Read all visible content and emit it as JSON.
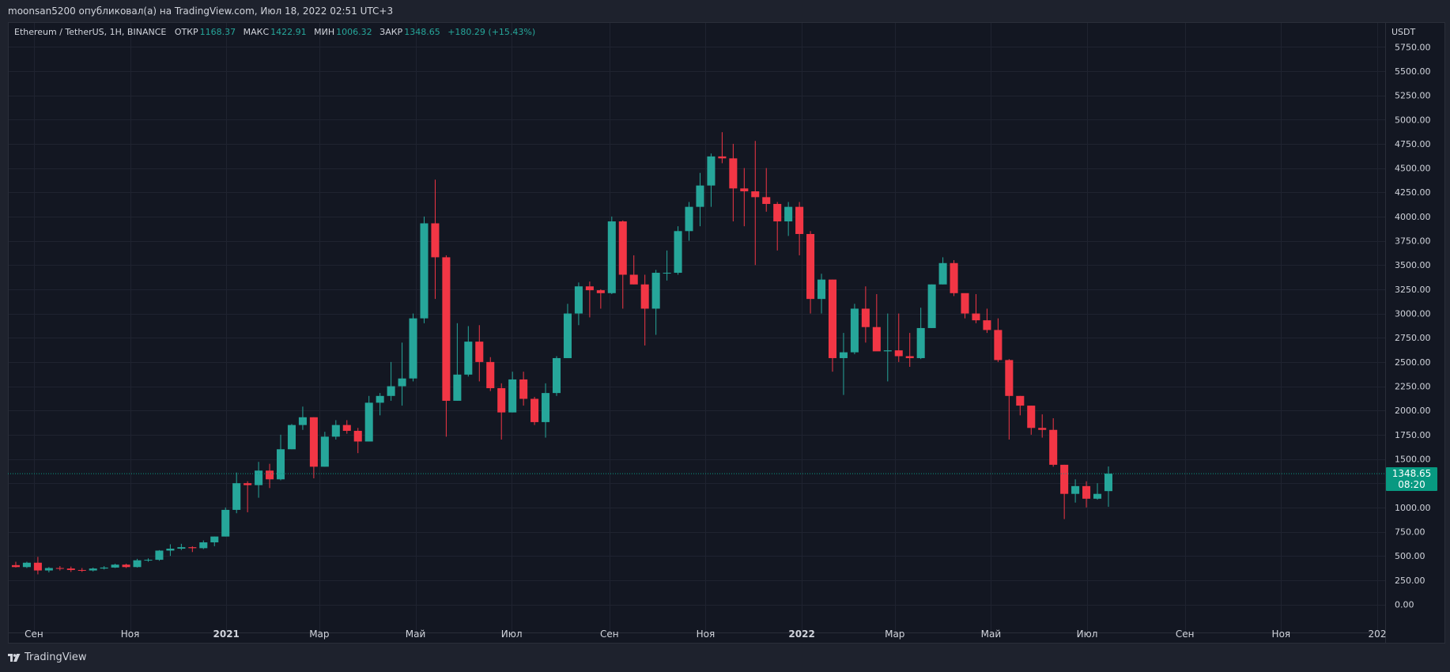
{
  "header": {
    "attribution": "moonsan5200 опубликовал(а) на TradingView.com, Июл 18, 2022 02:51 UTC+3"
  },
  "legend": {
    "symbol": "Ethereum / TetherUS, 1H, BINANCE",
    "open_label": "ОТКР",
    "open": "1168.37",
    "high_label": "МАКС",
    "high": "1422.91",
    "low_label": "МИН",
    "low": "1006.32",
    "close_label": "ЗАКР",
    "close": "1348.65",
    "change": "+180.29 (+15.43%)"
  },
  "last_price": {
    "value": "1348.65",
    "countdown": "08:20"
  },
  "footer": {
    "brand": "TradingView"
  },
  "colors": {
    "up": "#26a69a",
    "down": "#f23645",
    "background": "#131722",
    "grid": "#1f2330",
    "text": "#d1d4dc",
    "price_line": "#089981"
  },
  "chart_data": {
    "type": "candlestick",
    "currency_label": "USDT",
    "ylim": [
      -100,
      5950
    ],
    "y_ticks": [
      0,
      250,
      500,
      750,
      1000,
      1250,
      1500,
      1750,
      2000,
      2250,
      2500,
      2750,
      3000,
      3250,
      3500,
      3750,
      4000,
      4250,
      4500,
      4750,
      5000,
      5250,
      5500,
      5750
    ],
    "y_tick_labels": [
      "0.00",
      "250.00",
      "500.00",
      "750.00",
      "1000.00",
      "1250.00",
      "1500.00",
      "1750.00",
      "2000.00",
      "2250.00",
      "2500.00",
      "2750.00",
      "3000.00",
      "3250.00",
      "3500.00",
      "3750.00",
      "4000.00",
      "4250.00",
      "4500.00",
      "4750.00",
      "5000.00",
      "5250.00",
      "5500.00",
      "5750.00"
    ],
    "x_start_date": "2020-08-17",
    "x_end_date": "2023-01-01",
    "x_ticks": [
      {
        "date": "2020-09-01",
        "label": "Сен"
      },
      {
        "date": "2020-11-01",
        "label": "Ноя"
      },
      {
        "date": "2021-01-01",
        "label": "2021",
        "bold": true
      },
      {
        "date": "2021-03-01",
        "label": "Мар"
      },
      {
        "date": "2021-05-01",
        "label": "Май"
      },
      {
        "date": "2021-07-01",
        "label": "Июл"
      },
      {
        "date": "2021-09-01",
        "label": "Сен"
      },
      {
        "date": "2021-11-01",
        "label": "Ноя"
      },
      {
        "date": "2022-01-01",
        "label": "2022",
        "bold": true
      },
      {
        "date": "2022-03-01",
        "label": "Мар"
      },
      {
        "date": "2022-05-01",
        "label": "Май"
      },
      {
        "date": "2022-07-01",
        "label": "Июл"
      },
      {
        "date": "2022-09-01",
        "label": "Сен"
      },
      {
        "date": "2022-11-01",
        "label": "Ноя"
      },
      {
        "date": "2023-01-01",
        "label": "202"
      }
    ],
    "candle_interval_days": 7,
    "last_price": 1348.65,
    "candles": [
      {
        "d": "2020-08-17",
        "o": 405,
        "h": 440,
        "l": 380,
        "c": 385
      },
      {
        "d": "2020-08-24",
        "o": 385,
        "h": 440,
        "l": 375,
        "c": 430
      },
      {
        "d": "2020-08-31",
        "o": 430,
        "h": 490,
        "l": 310,
        "c": 350
      },
      {
        "d": "2020-09-07",
        "o": 350,
        "h": 385,
        "l": 330,
        "c": 375
      },
      {
        "d": "2020-09-14",
        "o": 375,
        "h": 395,
        "l": 350,
        "c": 370
      },
      {
        "d": "2020-09-21",
        "o": 370,
        "h": 390,
        "l": 335,
        "c": 355
      },
      {
        "d": "2020-09-28",
        "o": 355,
        "h": 375,
        "l": 335,
        "c": 350
      },
      {
        "d": "2020-10-05",
        "o": 350,
        "h": 380,
        "l": 340,
        "c": 370
      },
      {
        "d": "2020-10-12",
        "o": 370,
        "h": 395,
        "l": 360,
        "c": 380
      },
      {
        "d": "2020-10-19",
        "o": 380,
        "h": 420,
        "l": 375,
        "c": 410
      },
      {
        "d": "2020-10-26",
        "o": 410,
        "h": 420,
        "l": 375,
        "c": 385
      },
      {
        "d": "2020-11-02",
        "o": 385,
        "h": 470,
        "l": 380,
        "c": 455
      },
      {
        "d": "2020-11-09",
        "o": 455,
        "h": 475,
        "l": 440,
        "c": 460
      },
      {
        "d": "2020-11-16",
        "o": 460,
        "h": 560,
        "l": 450,
        "c": 555
      },
      {
        "d": "2020-11-23",
        "o": 555,
        "h": 620,
        "l": 500,
        "c": 575
      },
      {
        "d": "2020-11-30",
        "o": 575,
        "h": 625,
        "l": 560,
        "c": 590
      },
      {
        "d": "2020-12-07",
        "o": 590,
        "h": 600,
        "l": 540,
        "c": 580
      },
      {
        "d": "2020-12-14",
        "o": 580,
        "h": 660,
        "l": 570,
        "c": 640
      },
      {
        "d": "2020-12-21",
        "o": 640,
        "h": 700,
        "l": 600,
        "c": 700
      },
      {
        "d": "2020-12-28",
        "o": 700,
        "h": 1000,
        "l": 700,
        "c": 975
      },
      {
        "d": "2021-01-04",
        "o": 975,
        "h": 1360,
        "l": 940,
        "c": 1250
      },
      {
        "d": "2021-01-11",
        "o": 1250,
        "h": 1270,
        "l": 950,
        "c": 1230
      },
      {
        "d": "2021-01-18",
        "o": 1230,
        "h": 1470,
        "l": 1100,
        "c": 1380
      },
      {
        "d": "2021-01-25",
        "o": 1380,
        "h": 1450,
        "l": 1200,
        "c": 1290
      },
      {
        "d": "2021-02-01",
        "o": 1290,
        "h": 1750,
        "l": 1280,
        "c": 1600
      },
      {
        "d": "2021-02-08",
        "o": 1600,
        "h": 1860,
        "l": 1600,
        "c": 1850
      },
      {
        "d": "2021-02-15",
        "o": 1850,
        "h": 2040,
        "l": 1800,
        "c": 1930
      },
      {
        "d": "2021-02-22",
        "o": 1930,
        "h": 1930,
        "l": 1300,
        "c": 1420
      },
      {
        "d": "2021-03-01",
        "o": 1420,
        "h": 1780,
        "l": 1420,
        "c": 1730
      },
      {
        "d": "2021-03-08",
        "o": 1730,
        "h": 1900,
        "l": 1700,
        "c": 1850
      },
      {
        "d": "2021-03-15",
        "o": 1850,
        "h": 1900,
        "l": 1760,
        "c": 1790
      },
      {
        "d": "2021-03-22",
        "o": 1790,
        "h": 1820,
        "l": 1560,
        "c": 1680
      },
      {
        "d": "2021-03-29",
        "o": 1680,
        "h": 2150,
        "l": 1680,
        "c": 2080
      },
      {
        "d": "2021-04-05",
        "o": 2080,
        "h": 2180,
        "l": 1950,
        "c": 2150
      },
      {
        "d": "2021-04-12",
        "o": 2150,
        "h": 2500,
        "l": 2100,
        "c": 2250
      },
      {
        "d": "2021-04-19",
        "o": 2250,
        "h": 2700,
        "l": 2050,
        "c": 2330
      },
      {
        "d": "2021-04-26",
        "o": 2330,
        "h": 3000,
        "l": 2300,
        "c": 2950
      },
      {
        "d": "2021-05-03",
        "o": 2950,
        "h": 4000,
        "l": 2900,
        "c": 3930
      },
      {
        "d": "2021-05-10",
        "o": 3930,
        "h": 4380,
        "l": 3150,
        "c": 3580
      },
      {
        "d": "2021-05-17",
        "o": 3580,
        "h": 3600,
        "l": 1730,
        "c": 2100
      },
      {
        "d": "2021-05-24",
        "o": 2100,
        "h": 2900,
        "l": 2100,
        "c": 2370
      },
      {
        "d": "2021-05-31",
        "o": 2370,
        "h": 2870,
        "l": 2350,
        "c": 2710
      },
      {
        "d": "2021-06-07",
        "o": 2710,
        "h": 2880,
        "l": 2300,
        "c": 2500
      },
      {
        "d": "2021-06-14",
        "o": 2500,
        "h": 2550,
        "l": 2200,
        "c": 2230
      },
      {
        "d": "2021-06-21",
        "o": 2230,
        "h": 2280,
        "l": 1700,
        "c": 1980
      },
      {
        "d": "2021-06-28",
        "o": 1980,
        "h": 2400,
        "l": 1980,
        "c": 2320
      },
      {
        "d": "2021-07-05",
        "o": 2320,
        "h": 2400,
        "l": 2050,
        "c": 2120
      },
      {
        "d": "2021-07-12",
        "o": 2120,
        "h": 2140,
        "l": 1850,
        "c": 1880
      },
      {
        "d": "2021-07-19",
        "o": 1880,
        "h": 2280,
        "l": 1720,
        "c": 2180
      },
      {
        "d": "2021-07-26",
        "o": 2180,
        "h": 2560,
        "l": 2150,
        "c": 2540
      },
      {
        "d": "2021-08-02",
        "o": 2540,
        "h": 3100,
        "l": 2550,
        "c": 3000
      },
      {
        "d": "2021-08-09",
        "o": 3000,
        "h": 3320,
        "l": 2880,
        "c": 3280
      },
      {
        "d": "2021-08-16",
        "o": 3280,
        "h": 3330,
        "l": 2960,
        "c": 3240
      },
      {
        "d": "2021-08-23",
        "o": 3240,
        "h": 3250,
        "l": 3050,
        "c": 3210
      },
      {
        "d": "2021-08-30",
        "o": 3210,
        "h": 4000,
        "l": 3200,
        "c": 3950
      },
      {
        "d": "2021-09-06",
        "o": 3950,
        "h": 3960,
        "l": 3050,
        "c": 3400
      },
      {
        "d": "2021-09-13",
        "o": 3400,
        "h": 3600,
        "l": 3300,
        "c": 3300
      },
      {
        "d": "2021-09-20",
        "o": 3300,
        "h": 3400,
        "l": 2670,
        "c": 3050
      },
      {
        "d": "2021-09-27",
        "o": 3050,
        "h": 3450,
        "l": 2780,
        "c": 3420
      },
      {
        "d": "2021-10-04",
        "o": 3420,
        "h": 3650,
        "l": 3340,
        "c": 3420
      },
      {
        "d": "2021-10-11",
        "o": 3420,
        "h": 3900,
        "l": 3400,
        "c": 3850
      },
      {
        "d": "2021-10-18",
        "o": 3850,
        "h": 4150,
        "l": 3750,
        "c": 4100
      },
      {
        "d": "2021-10-25",
        "o": 4100,
        "h": 4450,
        "l": 3900,
        "c": 4320
      },
      {
        "d": "2021-11-01",
        "o": 4320,
        "h": 4650,
        "l": 4100,
        "c": 4620
      },
      {
        "d": "2021-11-08",
        "o": 4620,
        "h": 4870,
        "l": 4550,
        "c": 4600
      },
      {
        "d": "2021-11-15",
        "o": 4600,
        "h": 4750,
        "l": 3950,
        "c": 4290
      },
      {
        "d": "2021-11-22",
        "o": 4290,
        "h": 4500,
        "l": 3900,
        "c": 4260
      },
      {
        "d": "2021-11-29",
        "o": 4260,
        "h": 4780,
        "l": 3500,
        "c": 4200
      },
      {
        "d": "2021-12-06",
        "o": 4200,
        "h": 4500,
        "l": 4050,
        "c": 4130
      },
      {
        "d": "2021-12-13",
        "o": 4130,
        "h": 4150,
        "l": 3650,
        "c": 3950
      },
      {
        "d": "2021-12-20",
        "o": 3950,
        "h": 4150,
        "l": 3800,
        "c": 4100
      },
      {
        "d": "2021-12-27",
        "o": 4100,
        "h": 4150,
        "l": 3600,
        "c": 3820
      },
      {
        "d": "2022-01-03",
        "o": 3820,
        "h": 3850,
        "l": 3000,
        "c": 3150
      },
      {
        "d": "2022-01-10",
        "o": 3150,
        "h": 3410,
        "l": 3000,
        "c": 3350
      },
      {
        "d": "2022-01-17",
        "o": 3350,
        "h": 3350,
        "l": 2400,
        "c": 2540
      },
      {
        "d": "2022-01-24",
        "o": 2540,
        "h": 2800,
        "l": 2160,
        "c": 2600
      },
      {
        "d": "2022-01-31",
        "o": 2600,
        "h": 3100,
        "l": 2580,
        "c": 3050
      },
      {
        "d": "2022-02-07",
        "o": 3050,
        "h": 3280,
        "l": 2700,
        "c": 2860
      },
      {
        "d": "2022-02-14",
        "o": 2860,
        "h": 3200,
        "l": 2620,
        "c": 2610
      },
      {
        "d": "2022-02-21",
        "o": 2610,
        "h": 3000,
        "l": 2300,
        "c": 2620
      },
      {
        "d": "2022-02-28",
        "o": 2620,
        "h": 3000,
        "l": 2500,
        "c": 2560
      },
      {
        "d": "2022-03-07",
        "o": 2560,
        "h": 2800,
        "l": 2450,
        "c": 2540
      },
      {
        "d": "2022-03-14",
        "o": 2540,
        "h": 3060,
        "l": 2530,
        "c": 2850
      },
      {
        "d": "2022-03-21",
        "o": 2850,
        "h": 3300,
        "l": 2850,
        "c": 3300
      },
      {
        "d": "2022-03-28",
        "o": 3300,
        "h": 3580,
        "l": 3300,
        "c": 3520
      },
      {
        "d": "2022-04-04",
        "o": 3520,
        "h": 3550,
        "l": 3180,
        "c": 3210
      },
      {
        "d": "2022-04-11",
        "o": 3210,
        "h": 3200,
        "l": 2950,
        "c": 3000
      },
      {
        "d": "2022-04-18",
        "o": 3000,
        "h": 3200,
        "l": 2900,
        "c": 2930
      },
      {
        "d": "2022-04-25",
        "o": 2930,
        "h": 3050,
        "l": 2800,
        "c": 2830
      },
      {
        "d": "2022-05-02",
        "o": 2830,
        "h": 2950,
        "l": 2500,
        "c": 2520
      },
      {
        "d": "2022-05-09",
        "o": 2520,
        "h": 2530,
        "l": 1700,
        "c": 2150
      },
      {
        "d": "2022-05-16",
        "o": 2150,
        "h": 2150,
        "l": 1950,
        "c": 2050
      },
      {
        "d": "2022-05-23",
        "o": 2050,
        "h": 2050,
        "l": 1750,
        "c": 1820
      },
      {
        "d": "2022-05-30",
        "o": 1820,
        "h": 1960,
        "l": 1720,
        "c": 1800
      },
      {
        "d": "2022-06-06",
        "o": 1800,
        "h": 1920,
        "l": 1420,
        "c": 1440
      },
      {
        "d": "2022-06-13",
        "o": 1440,
        "h": 1440,
        "l": 880,
        "c": 1140
      },
      {
        "d": "2022-06-20",
        "o": 1140,
        "h": 1290,
        "l": 1050,
        "c": 1220
      },
      {
        "d": "2022-06-27",
        "o": 1220,
        "h": 1270,
        "l": 1000,
        "c": 1090
      },
      {
        "d": "2022-07-04",
        "o": 1090,
        "h": 1250,
        "l": 1080,
        "c": 1140
      },
      {
        "d": "2022-07-11",
        "o": 1168.37,
        "h": 1422.91,
        "l": 1006.32,
        "c": 1348.65
      }
    ]
  }
}
